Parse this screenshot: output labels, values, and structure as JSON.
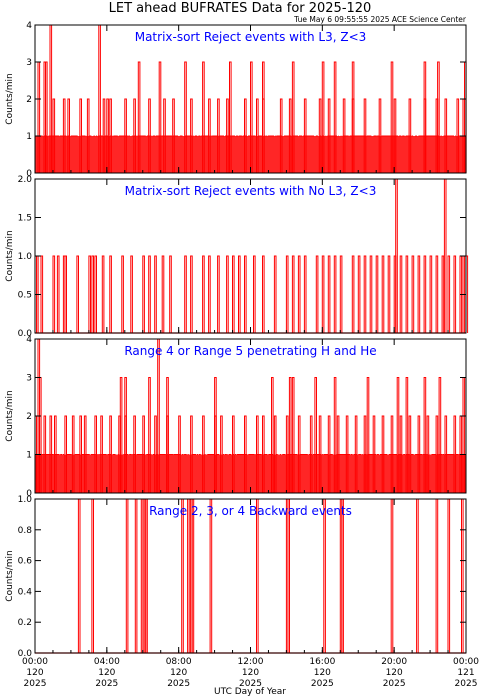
{
  "figure": {
    "title": "LET ahead BUFRATES Data for 2025-120",
    "timestamp": "Tue May  6 09:55:55 2025 ACE Science Center",
    "xlabel": "UTC Day of Year"
  },
  "colors": {
    "series": "#ff0000",
    "panel_title": "#0000ff",
    "axis": "#000000"
  },
  "chart_data": [
    {
      "type": "line",
      "title": "Matrix-sort Reject events with L3, Z<3",
      "ylabel": "Counts/min",
      "ylim": [
        0,
        4
      ],
      "yticks": [
        "0",
        "1",
        "2",
        "3",
        "4"
      ],
      "xlim": [
        0,
        1440
      ],
      "x_unit": "minutes of day",
      "baseline_max": 1,
      "spikes": [
        [
          60,
          2
        ],
        [
          95,
          2
        ],
        [
          110,
          2
        ],
        [
          150,
          2
        ],
        [
          175,
          2
        ],
        [
          228,
          2
        ],
        [
          240,
          2
        ],
        [
          250,
          2
        ],
        [
          300,
          2
        ],
        [
          330,
          2
        ],
        [
          380,
          2
        ],
        [
          430,
          2
        ],
        [
          460,
          2
        ],
        [
          520,
          2
        ],
        [
          580,
          2
        ],
        [
          610,
          2
        ],
        [
          640,
          2
        ],
        [
          700,
          2
        ],
        [
          740,
          2
        ],
        [
          760,
          2
        ],
        [
          820,
          2
        ],
        [
          850,
          2
        ],
        [
          900,
          2
        ],
        [
          950,
          2
        ],
        [
          980,
          2
        ],
        [
          1030,
          2
        ],
        [
          1060,
          2
        ],
        [
          1100,
          2
        ],
        [
          1150,
          2
        ],
        [
          1200,
          2
        ],
        [
          1250,
          2
        ],
        [
          1300,
          2
        ],
        [
          1340,
          2
        ],
        [
          1370,
          2
        ],
        [
          1410,
          2
        ],
        [
          1430,
          2
        ],
        [
          10,
          3
        ],
        [
          30,
          3
        ],
        [
          35,
          3
        ],
        [
          345,
          3
        ],
        [
          415,
          3
        ],
        [
          500,
          3
        ],
        [
          560,
          3
        ],
        [
          650,
          3
        ],
        [
          720,
          3
        ],
        [
          760,
          3
        ],
        [
          860,
          3
        ],
        [
          960,
          3
        ],
        [
          1000,
          3
        ],
        [
          1060,
          3
        ],
        [
          1190,
          3
        ],
        [
          1300,
          3
        ],
        [
          1345,
          3
        ],
        [
          1435,
          3
        ],
        [
          50,
          4
        ],
        [
          213,
          4
        ]
      ]
    },
    {
      "type": "line",
      "title": "Matrix-sort Reject events with No L3, Z<3",
      "ylabel": "Counts/min",
      "ylim": [
        0,
        2
      ],
      "yticks": [
        "0.0",
        "0.5",
        "1.0",
        "1.5",
        "2.0"
      ],
      "xlim": [
        0,
        1440
      ],
      "x_unit": "minutes of day",
      "spikes": [
        [
          0,
          1
        ],
        [
          5,
          1
        ],
        [
          20,
          1
        ],
        [
          60,
          1
        ],
        [
          75,
          1
        ],
        [
          95,
          1
        ],
        [
          100,
          1
        ],
        [
          140,
          1
        ],
        [
          180,
          1
        ],
        [
          190,
          1
        ],
        [
          200,
          1
        ],
        [
          225,
          1
        ],
        [
          250,
          1
        ],
        [
          290,
          1
        ],
        [
          320,
          1
        ],
        [
          360,
          1
        ],
        [
          380,
          1
        ],
        [
          400,
          1
        ],
        [
          425,
          1
        ],
        [
          450,
          1
        ],
        [
          500,
          1
        ],
        [
          520,
          1
        ],
        [
          560,
          1
        ],
        [
          580,
          1
        ],
        [
          610,
          1
        ],
        [
          640,
          1
        ],
        [
          660,
          1
        ],
        [
          680,
          1
        ],
        [
          700,
          1
        ],
        [
          730,
          1
        ],
        [
          760,
          1
        ],
        [
          800,
          1
        ],
        [
          840,
          1
        ],
        [
          860,
          1
        ],
        [
          880,
          1
        ],
        [
          900,
          1
        ],
        [
          940,
          1
        ],
        [
          960,
          1
        ],
        [
          980,
          1
        ],
        [
          1000,
          1
        ],
        [
          1020,
          1
        ],
        [
          1060,
          1
        ],
        [
          1080,
          1
        ],
        [
          1100,
          1
        ],
        [
          1120,
          1
        ],
        [
          1140,
          1
        ],
        [
          1160,
          1
        ],
        [
          1180,
          1
        ],
        [
          1200,
          1
        ],
        [
          1220,
          1
        ],
        [
          1240,
          1
        ],
        [
          1260,
          1
        ],
        [
          1280,
          1
        ],
        [
          1300,
          1
        ],
        [
          1320,
          1
        ],
        [
          1340,
          1
        ],
        [
          1360,
          1
        ],
        [
          1380,
          1
        ],
        [
          1400,
          1
        ],
        [
          1420,
          1
        ],
        [
          1430,
          1
        ],
        [
          1440,
          1
        ],
        [
          1205,
          2
        ],
        [
          1368,
          2
        ]
      ]
    },
    {
      "type": "line",
      "title": "Range 4 or Range 5 penetrating H and He",
      "ylabel": "Counts/min",
      "ylim": [
        0,
        4
      ],
      "yticks": [
        "0",
        "1",
        "2",
        "3",
        "4"
      ],
      "xlim": [
        0,
        1440
      ],
      "x_unit": "minutes of day",
      "baseline_max": 1,
      "spikes": [
        [
          5,
          2
        ],
        [
          30,
          2
        ],
        [
          50,
          2
        ],
        [
          65,
          2
        ],
        [
          100,
          2
        ],
        [
          125,
          2
        ],
        [
          150,
          2
        ],
        [
          165,
          2
        ],
        [
          200,
          2
        ],
        [
          220,
          2
        ],
        [
          250,
          2
        ],
        [
          280,
          2
        ],
        [
          300,
          2
        ],
        [
          330,
          2
        ],
        [
          360,
          2
        ],
        [
          400,
          2
        ],
        [
          440,
          2
        ],
        [
          480,
          2
        ],
        [
          520,
          2
        ],
        [
          560,
          2
        ],
        [
          600,
          2
        ],
        [
          620,
          2
        ],
        [
          660,
          2
        ],
        [
          700,
          2
        ],
        [
          740,
          2
        ],
        [
          760,
          2
        ],
        [
          800,
          2
        ],
        [
          840,
          2
        ],
        [
          880,
          2
        ],
        [
          920,
          2
        ],
        [
          950,
          2
        ],
        [
          980,
          2
        ],
        [
          1010,
          2
        ],
        [
          1040,
          2
        ],
        [
          1070,
          2
        ],
        [
          1100,
          2
        ],
        [
          1130,
          2
        ],
        [
          1160,
          2
        ],
        [
          1190,
          2
        ],
        [
          1220,
          2
        ],
        [
          1250,
          2
        ],
        [
          1280,
          2
        ],
        [
          1310,
          2
        ],
        [
          1340,
          2
        ],
        [
          1370,
          2
        ],
        [
          1400,
          2
        ],
        [
          1420,
          2
        ],
        [
          15,
          3
        ],
        [
          285,
          3
        ],
        [
          300,
          3
        ],
        [
          380,
          3
        ],
        [
          440,
          3
        ],
        [
          600,
          3
        ],
        [
          790,
          3
        ],
        [
          850,
          3
        ],
        [
          860,
          3
        ],
        [
          935,
          3
        ],
        [
          1000,
          3
        ],
        [
          1110,
          3
        ],
        [
          1210,
          3
        ],
        [
          1240,
          3
        ],
        [
          1300,
          3
        ],
        [
          1350,
          3
        ],
        [
          1430,
          3
        ],
        [
          10,
          4
        ],
        [
          410,
          4
        ]
      ]
    },
    {
      "type": "line",
      "title": "Range 2, 3, or 4 Backward events",
      "ylabel": "Counts/min",
      "ylim": [
        0,
        1
      ],
      "yticks": [
        "0.0",
        "0.2",
        "0.4",
        "0.6",
        "0.8",
        "1.0"
      ],
      "xlim": [
        0,
        1440
      ],
      "x_unit": "minutes of day",
      "spikes": [
        [
          145,
          1
        ],
        [
          190,
          1
        ],
        [
          305,
          1
        ],
        [
          335,
          1
        ],
        [
          355,
          1
        ],
        [
          365,
          1
        ],
        [
          370,
          1
        ],
        [
          490,
          1
        ],
        [
          510,
          1
        ],
        [
          520,
          1
        ],
        [
          525,
          1
        ],
        [
          585,
          1
        ],
        [
          740,
          1
        ],
        [
          840,
          1
        ],
        [
          845,
          1
        ],
        [
          965,
          1
        ],
        [
          1020,
          1
        ],
        [
          1025,
          1
        ],
        [
          1190,
          1
        ],
        [
          1275,
          1
        ],
        [
          1340,
          1
        ],
        [
          1380,
          1
        ],
        [
          1425,
          1
        ]
      ]
    }
  ],
  "xaxis": {
    "ticks": [
      {
        "min": 0,
        "l1": "00:00",
        "l2": "120",
        "l3": "2025"
      },
      {
        "min": 240,
        "l1": "04:00",
        "l2": "120",
        "l3": "2025"
      },
      {
        "min": 480,
        "l1": "08:00",
        "l2": "120",
        "l3": "2025"
      },
      {
        "min": 720,
        "l1": "12:00",
        "l2": "120",
        "l3": "2025"
      },
      {
        "min": 960,
        "l1": "16:00",
        "l2": "120",
        "l3": "2025"
      },
      {
        "min": 1200,
        "l1": "20:00",
        "l2": "120",
        "l3": "2025"
      },
      {
        "min": 1440,
        "l1": "00:00",
        "l2": "121",
        "l3": "2025"
      }
    ]
  }
}
